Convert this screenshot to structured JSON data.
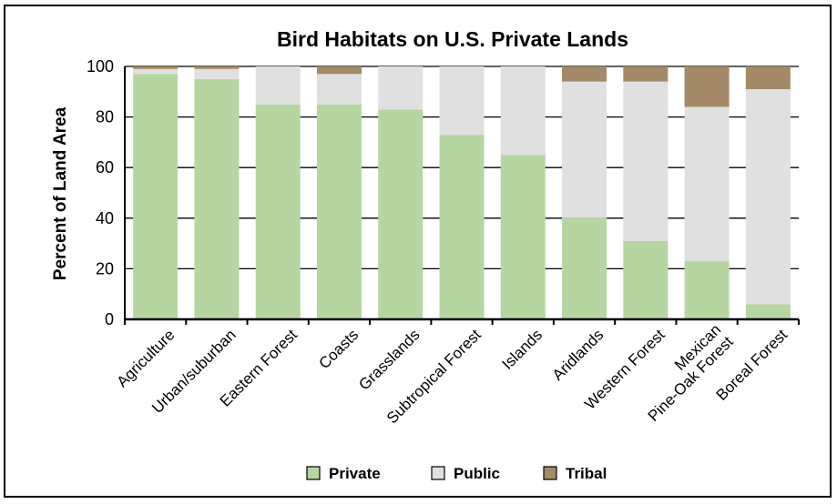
{
  "colors": {
    "private": "#b5d6a0",
    "public": "#e0e0e0",
    "tribal": "#a48a68"
  },
  "chart_data": {
    "type": "bar",
    "stacked": true,
    "title": "Bird Habitats on U.S. Private Lands",
    "ylabel": "Percent of Land Area",
    "xlabel": "",
    "ylim": [
      0,
      100
    ],
    "yticks": [
      "0",
      "20",
      "40",
      "60",
      "80",
      "100"
    ],
    "grid": true,
    "legend_position": "bottom",
    "categories": [
      [
        "Agriculture"
      ],
      [
        "Urban/suburban"
      ],
      [
        "Eastern Forest"
      ],
      [
        "Coasts"
      ],
      [
        "Grasslands"
      ],
      [
        "Subtropical Forest"
      ],
      [
        "Islands"
      ],
      [
        "Aridlands"
      ],
      [
        "Western Forest"
      ],
      [
        "Mexican",
        "Pine-Oak Forest"
      ],
      [
        "Boreal Forest"
      ]
    ],
    "series": [
      {
        "name": "Private",
        "values": [
          97,
          95,
          85,
          85,
          83,
          73,
          65,
          40,
          31,
          23,
          6
        ]
      },
      {
        "name": "Public",
        "values": [
          2,
          4,
          15,
          12,
          17,
          27,
          35,
          54,
          63,
          61,
          85
        ]
      },
      {
        "name": "Tribal",
        "values": [
          1,
          1,
          0,
          3,
          0,
          0,
          0,
          6,
          6,
          16,
          9
        ]
      }
    ]
  }
}
